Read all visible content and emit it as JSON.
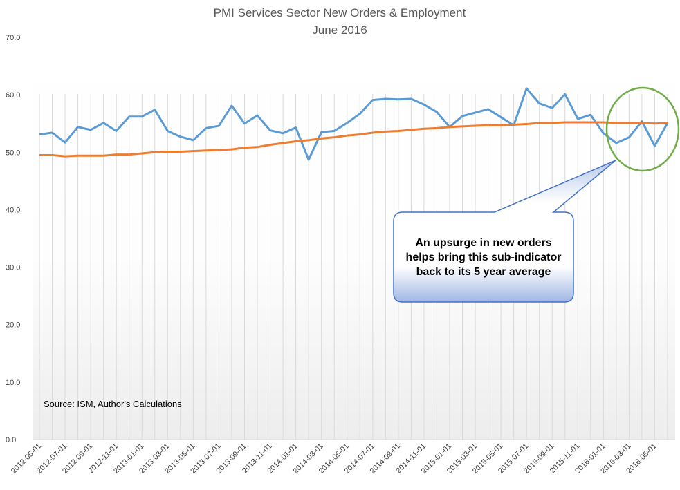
{
  "chart_data": {
    "type": "line",
    "title": "PMI Services Sector New Orders & Employment",
    "subtitle": "June 2016",
    "xlabel": "",
    "ylabel": "",
    "ylim": [
      0,
      70
    ],
    "yticks": [
      "0.0",
      "10.0",
      "20.0",
      "30.0",
      "40.0",
      "50.0",
      "60.0",
      "70.0"
    ],
    "grid": "vertical",
    "legend": "none",
    "x": [
      "2012-05-01",
      "2012-06-01",
      "2012-07-01",
      "2012-08-01",
      "2012-09-01",
      "2012-10-01",
      "2012-11-01",
      "2012-12-01",
      "2013-01-01",
      "2013-02-01",
      "2013-03-01",
      "2013-04-01",
      "2013-05-01",
      "2013-06-01",
      "2013-07-01",
      "2013-08-01",
      "2013-09-01",
      "2013-10-01",
      "2013-11-01",
      "2013-12-01",
      "2014-01-01",
      "2014-02-01",
      "2014-03-01",
      "2014-04-01",
      "2014-05-01",
      "2014-06-01",
      "2014-07-01",
      "2014-08-01",
      "2014-09-01",
      "2014-10-01",
      "2014-11-01",
      "2014-12-01",
      "2015-01-01",
      "2015-02-01",
      "2015-03-01",
      "2015-04-01",
      "2015-05-01",
      "2015-06-01",
      "2015-07-01",
      "2015-08-01",
      "2015-09-01",
      "2015-10-01",
      "2015-11-01",
      "2015-12-01",
      "2016-01-01",
      "2016-02-01",
      "2016-03-01",
      "2016-04-01",
      "2016-05-01",
      "2016-06-01"
    ],
    "series": [
      {
        "color": "#5B9BD5",
        "values": [
          53.1,
          53.4,
          51.7,
          54.4,
          53.9,
          55.1,
          53.7,
          56.2,
          56.2,
          57.4,
          53.7,
          52.7,
          52.1,
          54.2,
          54.6,
          58.1,
          55.0,
          56.4,
          53.8,
          53.3,
          54.3,
          48.7,
          53.5,
          53.7,
          55.1,
          56.7,
          59.1,
          59.3,
          59.2,
          59.3,
          58.3,
          57.0,
          54.4,
          56.3,
          56.9,
          57.5,
          56.1,
          54.7,
          61.1,
          58.5,
          57.7,
          60.1,
          55.8,
          56.5,
          53.3,
          51.6,
          52.6,
          55.4,
          51.1,
          55.1
        ]
      },
      {
        "color": "#ED7D31",
        "values": [
          49.5,
          49.5,
          49.3,
          49.4,
          49.4,
          49.4,
          49.6,
          49.6,
          49.8,
          50.0,
          50.1,
          50.1,
          50.2,
          50.3,
          50.4,
          50.5,
          50.8,
          50.9,
          51.3,
          51.6,
          51.9,
          52.1,
          52.4,
          52.6,
          52.9,
          53.1,
          53.4,
          53.6,
          53.7,
          53.9,
          54.1,
          54.2,
          54.4,
          54.5,
          54.6,
          54.7,
          54.7,
          54.8,
          54.9,
          55.1,
          55.1,
          55.2,
          55.2,
          55.2,
          55.2,
          55.1,
          55.1,
          55.1,
          55.0,
          55.1
        ]
      }
    ],
    "annotations": {
      "source": "Source: ISM, Author's Calculations",
      "callout": "An upsurge in new orders helps bring this sub-indicator back to its 5 year average",
      "highlight_color": "#70AD47"
    }
  }
}
